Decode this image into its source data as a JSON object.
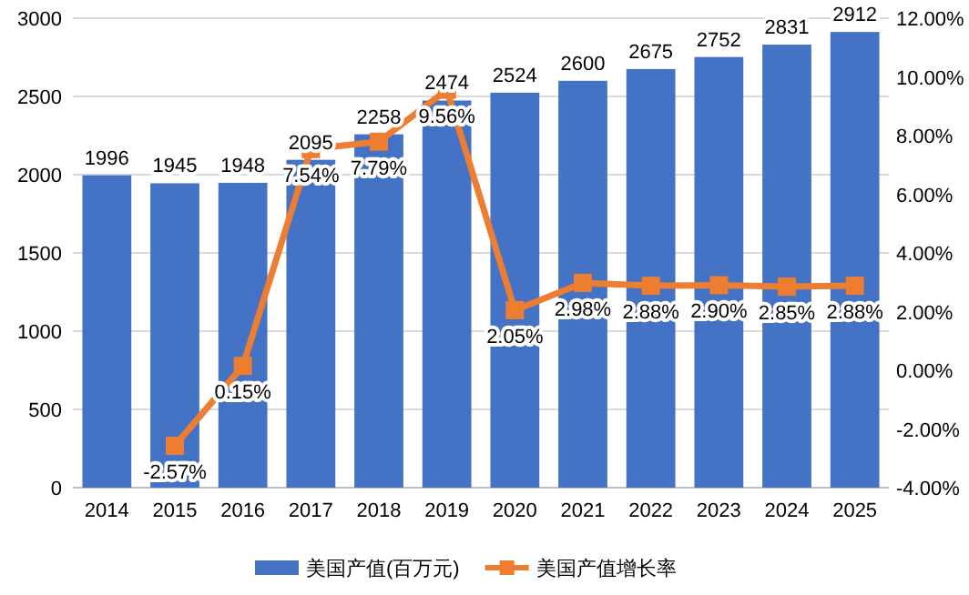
{
  "chart_data": {
    "type": "bar",
    "categories": [
      "2014",
      "2015",
      "2016",
      "2017",
      "2018",
      "2019",
      "2020",
      "2021",
      "2022",
      "2023",
      "2024",
      "2025"
    ],
    "series": [
      {
        "name": "美国产值(百万元)",
        "color": "#4472c4",
        "values": [
          1996,
          1945,
          1948,
          2095,
          2258,
          2474,
          2524,
          2600,
          2675,
          2752,
          2831,
          2912
        ]
      },
      {
        "name": "美国产值增长率",
        "type": "line",
        "axis": "y2",
        "color": "#ed7d31",
        "marker": "square",
        "values": [
          null,
          -2.57,
          0.15,
          7.54,
          7.79,
          9.56,
          2.05,
          2.98,
          2.88,
          2.9,
          2.85,
          2.88
        ],
        "value_labels": [
          null,
          "-2.57%",
          "0.15%",
          "7.54%",
          "7.79%",
          "9.56%",
          "2.05%",
          "2.98%",
          "2.88%",
          "2.90%",
          "2.85%",
          "2.88%"
        ]
      }
    ],
    "data_labels": true,
    "ylim": [
      0,
      3000
    ],
    "yticks": [
      0,
      500,
      1000,
      1500,
      2000,
      2500,
      3000
    ],
    "y2lim": [
      -4,
      12
    ],
    "y2ticks": [
      {
        "value": -4,
        "label": "-4.00%"
      },
      {
        "value": -2,
        "label": "-2.00%"
      },
      {
        "value": 0,
        "label": "0.00%"
      },
      {
        "value": 2,
        "label": "2.00%"
      },
      {
        "value": 4,
        "label": "4.00%"
      },
      {
        "value": 6,
        "label": "6.00%"
      },
      {
        "value": 8,
        "label": "8.00%"
      },
      {
        "value": 10,
        "label": "10.00%"
      },
      {
        "value": 12,
        "label": "12.00%"
      }
    ],
    "grid": "y",
    "legend": "bottom"
  }
}
